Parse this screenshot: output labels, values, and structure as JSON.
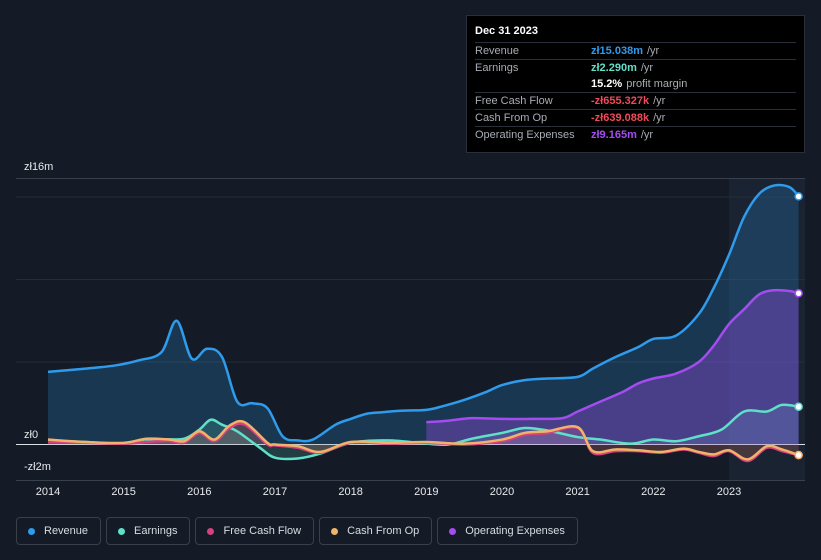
{
  "tooltip": {
    "date": "Dec 31 2023",
    "rows": [
      {
        "label": "Revenue",
        "value": "zł15.038m",
        "unit": "/yr",
        "color": "#2f9bec"
      },
      {
        "label": "Earnings",
        "value": "zł2.290m",
        "unit": "/yr",
        "color": "#5fe0c8"
      },
      {
        "label": "",
        "value": "15.2%",
        "unit": "profit margin",
        "color": "#ffffff"
      },
      {
        "label": "Free Cash Flow",
        "value": "-zł655.327k",
        "unit": "/yr",
        "color": "#ef4a5a"
      },
      {
        "label": "Cash From Op",
        "value": "-zł639.088k",
        "unit": "/yr",
        "color": "#ef4a5a"
      },
      {
        "label": "Operating Expenses",
        "value": "zł9.165m",
        "unit": "/yr",
        "color": "#a44cf0"
      }
    ]
  },
  "legend": [
    {
      "label": "Revenue",
      "color": "#2f9bec"
    },
    {
      "label": "Earnings",
      "color": "#5fe0c8"
    },
    {
      "label": "Free Cash Flow",
      "color": "#d9407e"
    },
    {
      "label": "Cash From Op",
      "color": "#f0b36a"
    },
    {
      "label": "Operating Expenses",
      "color": "#a44cf0"
    }
  ],
  "chart_data": {
    "type": "area",
    "x_ticks": [
      "2014",
      "2015",
      "2016",
      "2017",
      "2018",
      "2019",
      "2020",
      "2021",
      "2022",
      "2023"
    ],
    "y_labels": {
      "top": "zł16m",
      "zero": "zł0",
      "bottom": "-zł2m"
    },
    "ylim": [
      -2,
      16
    ],
    "unit": "zł millions",
    "series": [
      {
        "name": "Revenue",
        "color": "#2f9bec",
        "x": [
          2014.0,
          2014.5,
          2014.9,
          2015.2,
          2015.5,
          2015.7,
          2015.9,
          2016.1,
          2016.3,
          2016.5,
          2016.7,
          2016.9,
          2017.1,
          2017.3,
          2017.5,
          2017.8,
          2018.0,
          2018.2,
          2018.4,
          2018.7,
          2019.0,
          2019.2,
          2019.5,
          2019.8,
          2020.0,
          2020.3,
          2020.6,
          2021.0,
          2021.2,
          2021.5,
          2021.8,
          2022.0,
          2022.3,
          2022.6,
          2022.8,
          2023.0,
          2023.2,
          2023.4,
          2023.6,
          2023.8,
          2023.92
        ],
        "values": [
          4.4,
          4.6,
          4.8,
          5.1,
          5.6,
          7.5,
          5.2,
          5.8,
          5.3,
          2.6,
          2.5,
          2.2,
          0.5,
          0.25,
          0.3,
          1.2,
          1.55,
          1.85,
          1.95,
          2.05,
          2.1,
          2.3,
          2.7,
          3.2,
          3.6,
          3.9,
          4.0,
          4.1,
          4.6,
          5.3,
          5.9,
          6.4,
          6.6,
          7.9,
          9.5,
          11.5,
          13.8,
          15.2,
          15.7,
          15.6,
          15.038
        ]
      },
      {
        "name": "Earnings",
        "color": "#5fe0c8",
        "x": [
          2014.0,
          2014.5,
          2015.0,
          2015.5,
          2015.8,
          2016.0,
          2016.15,
          2016.3,
          2016.5,
          2016.8,
          2017.0,
          2017.3,
          2017.6,
          2018.0,
          2018.5,
          2019.0,
          2019.3,
          2019.6,
          2020.0,
          2020.3,
          2020.6,
          2021.0,
          2021.3,
          2021.7,
          2022.0,
          2022.3,
          2022.6,
          2022.9,
          2023.2,
          2023.5,
          2023.7,
          2023.92
        ],
        "values": [
          0.25,
          0.15,
          0.05,
          0.3,
          0.35,
          0.9,
          1.5,
          1.2,
          0.8,
          -0.2,
          -0.8,
          -0.85,
          -0.55,
          0.1,
          0.25,
          0.05,
          0.0,
          0.35,
          0.7,
          1.0,
          0.85,
          0.45,
          0.3,
          0.05,
          0.3,
          0.2,
          0.5,
          0.9,
          2.0,
          2.0,
          2.4,
          2.29
        ]
      },
      {
        "name": "Free Cash Flow",
        "color": "#d9407e",
        "x": [
          2014.0,
          2014.5,
          2015.0,
          2015.3,
          2015.6,
          2015.8,
          2016.0,
          2016.2,
          2016.4,
          2016.6,
          2016.9,
          2017.0,
          2017.3,
          2017.6,
          2018.0,
          2018.5,
          2019.0,
          2019.5,
          2020.0,
          2020.3,
          2020.6,
          2021.0,
          2021.2,
          2021.5,
          2021.8,
          2022.1,
          2022.4,
          2022.6,
          2022.8,
          2023.0,
          2023.25,
          2023.5,
          2023.7,
          2023.92
        ],
        "values": [
          0.15,
          0.1,
          0.05,
          0.15,
          0.2,
          0.1,
          0.7,
          0.2,
          1.0,
          1.2,
          0.0,
          -0.05,
          -0.2,
          -0.5,
          0.1,
          0.05,
          0.1,
          0.0,
          0.2,
          0.6,
          0.7,
          1.0,
          -0.5,
          -0.4,
          -0.4,
          -0.5,
          -0.3,
          -0.5,
          -0.7,
          -0.4,
          -1.0,
          -0.2,
          -0.4,
          -0.655
        ]
      },
      {
        "name": "Cash From Op",
        "color": "#f0b36a",
        "x": [
          2014.0,
          2014.5,
          2015.0,
          2015.3,
          2015.6,
          2015.8,
          2016.0,
          2016.2,
          2016.4,
          2016.6,
          2016.9,
          2017.0,
          2017.3,
          2017.6,
          2018.0,
          2018.5,
          2019.0,
          2019.5,
          2020.0,
          2020.3,
          2020.6,
          2021.0,
          2021.2,
          2021.5,
          2021.8,
          2022.1,
          2022.4,
          2022.6,
          2022.8,
          2023.0,
          2023.25,
          2023.5,
          2023.7,
          2023.92
        ],
        "values": [
          0.3,
          0.15,
          0.1,
          0.35,
          0.3,
          0.2,
          0.8,
          0.3,
          1.15,
          1.35,
          0.1,
          0.0,
          -0.1,
          -0.45,
          0.15,
          0.1,
          0.15,
          0.05,
          0.3,
          0.7,
          0.8,
          1.05,
          -0.4,
          -0.3,
          -0.35,
          -0.45,
          -0.25,
          -0.45,
          -0.6,
          -0.35,
          -0.9,
          -0.1,
          -0.3,
          -0.639
        ]
      },
      {
        "name": "Operating Expenses",
        "color": "#a44cf0",
        "x": [
          2019.0,
          2019.3,
          2019.6,
          2020.0,
          2020.4,
          2020.8,
          2021.0,
          2021.3,
          2021.6,
          2021.8,
          2022.0,
          2022.3,
          2022.6,
          2022.8,
          2023.0,
          2023.2,
          2023.4,
          2023.6,
          2023.8,
          2023.92
        ],
        "values": [
          1.35,
          1.45,
          1.6,
          1.55,
          1.55,
          1.6,
          2.0,
          2.6,
          3.2,
          3.7,
          4.0,
          4.3,
          5.0,
          6.0,
          7.3,
          8.2,
          9.1,
          9.35,
          9.3,
          9.165
        ]
      }
    ]
  }
}
